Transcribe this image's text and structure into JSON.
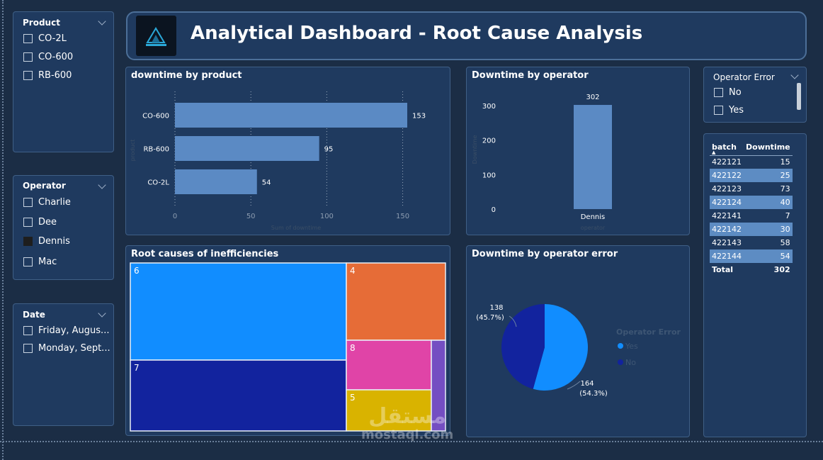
{
  "header": {
    "title": "Analytical Dashboard - Root Cause Analysis"
  },
  "product_slicer": {
    "title": "Product",
    "options": [
      "CO-2L",
      "CO-600",
      "RB-600"
    ]
  },
  "operator_slicer": {
    "title": "Operator",
    "options": [
      {
        "label": "Charlie",
        "checked": false
      },
      {
        "label": "Dee",
        "checked": false
      },
      {
        "label": "Dennis",
        "checked": true
      },
      {
        "label": "Mac",
        "checked": false
      }
    ]
  },
  "date_slicer": {
    "title": "Date",
    "options": [
      "Friday, Augus...",
      "Monday, Sept..."
    ]
  },
  "operator_error_slicer": {
    "title": "Operator Error",
    "options": [
      "No",
      "Yes"
    ]
  },
  "product_chart": {
    "title": "downtime by product",
    "ylabel": "product",
    "xlabel": "Sum of downtime"
  },
  "operator_chart": {
    "title": "Downtime by operator",
    "ylabel": "Downtime",
    "xlabel": "operator"
  },
  "treemap": {
    "title": "Root causes of inefficiencies"
  },
  "pie_chart": {
    "title": "Downtime by operator error",
    "legend_title": "Operator Error",
    "legend_items": [
      "Yes",
      "No"
    ],
    "labels": {
      "no_value": "138",
      "no_pct": "(45.7%)",
      "yes_value": "164",
      "yes_pct": "(54.3%)"
    }
  },
  "batch_table": {
    "headers": [
      "batch",
      "Downtime"
    ],
    "rows": [
      {
        "batch": "422121",
        "downtime": "15"
      },
      {
        "batch": "422122",
        "downtime": "25"
      },
      {
        "batch": "422123",
        "downtime": "73"
      },
      {
        "batch": "422124",
        "downtime": "40"
      },
      {
        "batch": "422141",
        "downtime": "7"
      },
      {
        "batch": "422142",
        "downtime": "30"
      },
      {
        "batch": "422143",
        "downtime": "58"
      },
      {
        "batch": "422144",
        "downtime": "54"
      }
    ],
    "total_label": "Total",
    "total_value": "302"
  },
  "watermark": {
    "arabic": "مستقل",
    "latin": "mostaql.com"
  },
  "colors": {
    "bar": "#5b8ac4",
    "yes": "#118dff",
    "no": "#12239e",
    "treemap_orange": "#e66c37",
    "treemap_pink": "#e044a7",
    "treemap_yellow": "#d9b300",
    "treemap_purple": "#744ec2"
  },
  "chart_data": [
    {
      "type": "bar",
      "orientation": "horizontal",
      "title": "downtime by product",
      "categories": [
        "CO-600",
        "RB-600",
        "CO-2L"
      ],
      "values": [
        153,
        95,
        54
      ],
      "xlabel": "Sum of downtime",
      "ylabel": "product",
      "xlim": [
        0,
        160
      ],
      "ticks": [
        0,
        50,
        100,
        150
      ],
      "grid": true
    },
    {
      "type": "bar",
      "title": "Downtime by operator",
      "categories": [
        "Dennis"
      ],
      "values": [
        302
      ],
      "xlabel": "operator",
      "ylabel": "Downtime",
      "ylim": [
        0,
        300
      ],
      "ticks": [
        0,
        100,
        200,
        300
      ]
    },
    {
      "type": "treemap",
      "title": "Root causes of inefficiencies",
      "labels": [
        "6",
        "7",
        "4",
        "8",
        "5",
        ""
      ]
    },
    {
      "type": "pie",
      "title": "Downtime by operator error",
      "categories": [
        "Yes",
        "No"
      ],
      "values": [
        164,
        138
      ],
      "percentages": [
        54.3,
        45.7
      ],
      "legend_title": "Operator Error",
      "legend_position": "right"
    }
  ]
}
